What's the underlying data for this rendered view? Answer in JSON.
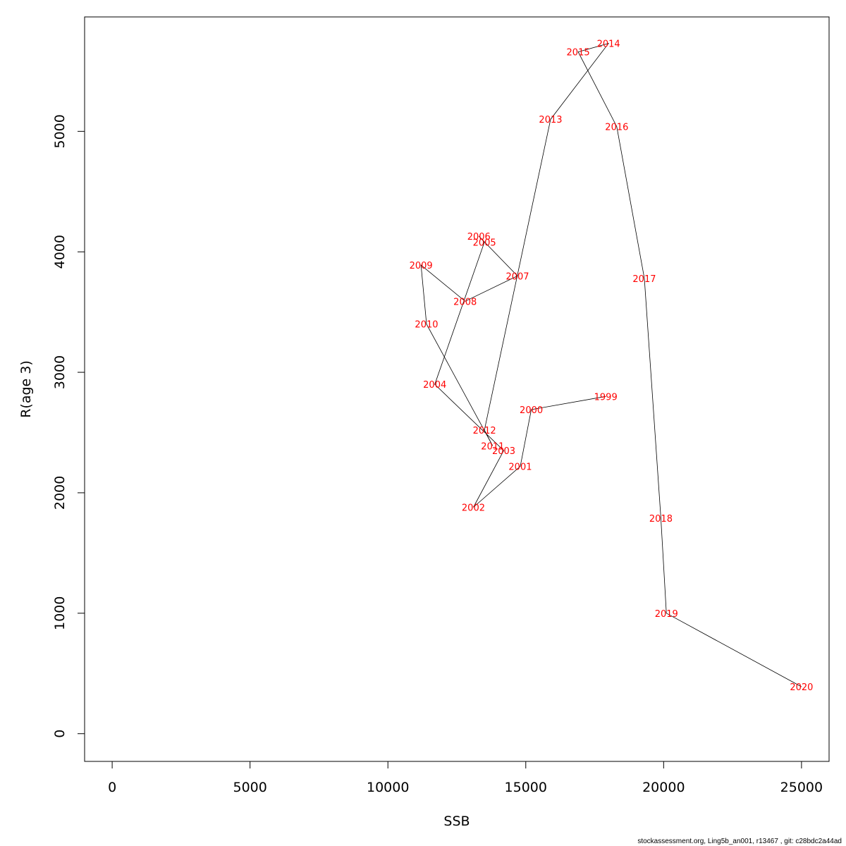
{
  "chart_data": {
    "type": "line",
    "xlabel": "SSB",
    "ylabel": "R(age 3)",
    "xlim": [
      -1000,
      26000
    ],
    "ylim": [
      -230,
      5950
    ],
    "x_ticks": [
      0,
      5000,
      10000,
      15000,
      20000,
      25000
    ],
    "y_ticks": [
      0,
      1000,
      2000,
      3000,
      4000,
      5000
    ],
    "grid": false,
    "line_color": "#000000",
    "label_color": "#ff0000",
    "series": [
      {
        "points": [
          {
            "year": "1999",
            "ssb": 17900,
            "r": 2800
          },
          {
            "year": "2000",
            "ssb": 15200,
            "r": 2690
          },
          {
            "year": "2001",
            "ssb": 14800,
            "r": 2220
          },
          {
            "year": "2002",
            "ssb": 13100,
            "r": 1880
          },
          {
            "year": "2003",
            "ssb": 14200,
            "r": 2350
          },
          {
            "year": "2004",
            "ssb": 11700,
            "r": 2900
          },
          {
            "year": "2005",
            "ssb": 13500,
            "r": 4080
          },
          {
            "year": "2006",
            "ssb": 13300,
            "r": 4130
          },
          {
            "year": "2007",
            "ssb": 14700,
            "r": 3800
          },
          {
            "year": "2008",
            "ssb": 12800,
            "r": 3590
          },
          {
            "year": "2009",
            "ssb": 11200,
            "r": 3890
          },
          {
            "year": "2010",
            "ssb": 11400,
            "r": 3400
          },
          {
            "year": "2011",
            "ssb": 13800,
            "r": 2390
          },
          {
            "year": "2012",
            "ssb": 13500,
            "r": 2520
          },
          {
            "year": "2013",
            "ssb": 15900,
            "r": 5100
          },
          {
            "year": "2014",
            "ssb": 18000,
            "r": 5730
          },
          {
            "year": "2015",
            "ssb": 16900,
            "r": 5660
          },
          {
            "year": "2016",
            "ssb": 18300,
            "r": 5040
          },
          {
            "year": "2017",
            "ssb": 19300,
            "r": 3780
          },
          {
            "year": "2018",
            "ssb": 19900,
            "r": 1790
          },
          {
            "year": "2019",
            "ssb": 20100,
            "r": 1000
          },
          {
            "year": "2020",
            "ssb": 25000,
            "r": 390
          }
        ]
      }
    ]
  },
  "footer": "stockassessment.org, Ling5b_an001, r13467 , git: c28bdc2a44ad"
}
